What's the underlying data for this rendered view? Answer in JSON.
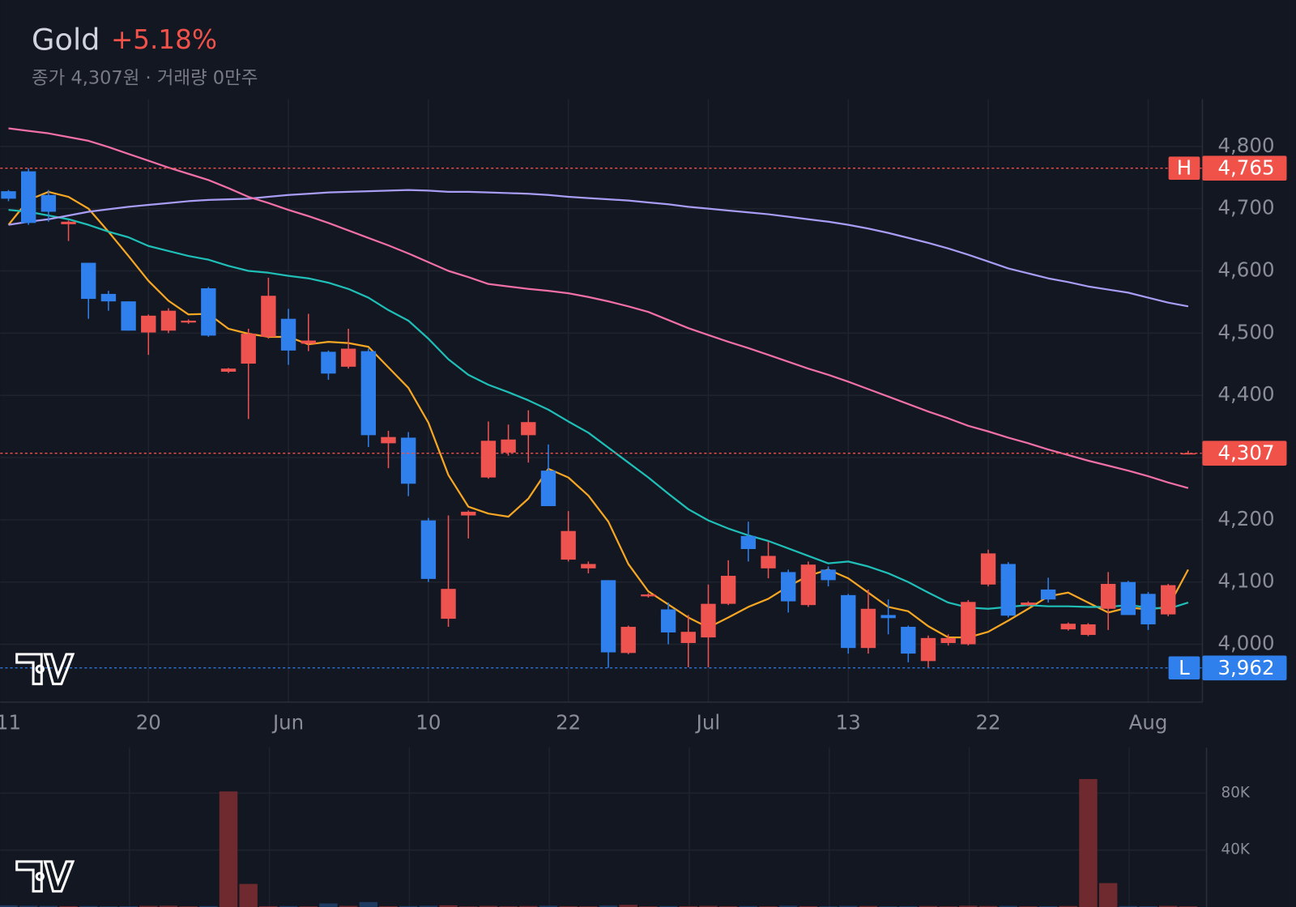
{
  "chart_data": {
    "type": "candlestick",
    "title": "Gold",
    "change": "+5.18%",
    "subtitle": "종가 4,307원 · 거래량 0만주",
    "categories": [
      "11",
      null,
      null,
      null,
      null,
      null,
      null,
      "20",
      null,
      null,
      null,
      null,
      null,
      null,
      "Jun",
      null,
      null,
      null,
      null,
      null,
      null,
      "10",
      null,
      null,
      null,
      null,
      null,
      null,
      "22",
      null,
      null,
      null,
      null,
      null,
      null,
      "Jul",
      null,
      null,
      null,
      null,
      null,
      null,
      "13",
      null,
      null,
      null,
      null,
      null,
      null,
      "22",
      null,
      null,
      null,
      null,
      null,
      null,
      null,
      "Aug",
      null,
      null
    ],
    "open": [
      4728,
      4760,
      4722,
      4675,
      4613,
      4563,
      4551,
      4501,
      4504,
      4517,
      4572,
      4438,
      4451,
      4494,
      4523,
      4483,
      4470,
      4446,
      4471,
      4323,
      4332,
      4199,
      4041,
      4207,
      4268,
      4308,
      4336,
      4279,
      4136,
      4122,
      4103,
      3986,
      4077,
      4056,
      4002,
      4011,
      4065,
      4174,
      4122,
      4116,
      4063,
      4120,
      4079,
      3994,
      4047,
      4028,
      3973,
      4002,
      4000,
      4096,
      4129,
      4063,
      4088,
      4024,
      4015,
      4057,
      4100,
      4081,
      4048,
      4306
    ],
    "high": [
      4730,
      4765,
      4730,
      4681,
      4613,
      4568,
      4551,
      4530,
      4540,
      4522,
      4574,
      4444,
      4507,
      4589,
      4539,
      4531,
      4472,
      4507,
      4475,
      4343,
      4341,
      4203,
      4207,
      4215,
      4358,
      4353,
      4376,
      4321,
      4214,
      4133,
      4103,
      4030,
      4082,
      4067,
      4047,
      4096,
      4135,
      4197,
      4165,
      4120,
      4133,
      4125,
      4081,
      4088,
      4072,
      4030,
      4014,
      4016,
      4071,
      4152,
      4132,
      4069,
      4107,
      4035,
      4034,
      4116,
      4102,
      4084,
      4097,
      4311
    ],
    "low": [
      4712,
      4674,
      4679,
      4648,
      4523,
      4536,
      4504,
      4465,
      4500,
      4515,
      4494,
      4436,
      4362,
      4491,
      4449,
      4471,
      4425,
      4443,
      4317,
      4283,
      4238,
      4100,
      4028,
      4170,
      4266,
      4303,
      4292,
      4222,
      4133,
      4114,
      3962,
      3984,
      4075,
      4000,
      3963,
      3963,
      4063,
      4133,
      4106,
      4051,
      4060,
      4093,
      3985,
      3985,
      4016,
      3971,
      3963,
      3998,
      3998,
      4093,
      4043,
      4061,
      4067,
      4022,
      4013,
      4023,
      4047,
      4023,
      4045,
      4305
    ],
    "close": [
      4716,
      4677,
      4695,
      4679,
      4555,
      4551,
      4504,
      4528,
      4536,
      4520,
      4496,
      4443,
      4499,
      4560,
      4472,
      4488,
      4435,
      4475,
      4336,
      4333,
      4258,
      4105,
      4089,
      4213,
      4327,
      4329,
      4357,
      4222,
      4182,
      4129,
      3987,
      4028,
      4080,
      4019,
      4020,
      4065,
      4110,
      4153,
      4142,
      4069,
      4128,
      4103,
      3994,
      4057,
      4042,
      3985,
      4010,
      4010,
      4068,
      4146,
      4046,
      4067,
      4072,
      4033,
      4032,
      4097,
      4047,
      4032,
      4095,
      4307
    ],
    "up_color": "#ef5350",
    "down_color": "#2f80ed",
    "series": [
      {
        "color": "#f5a623",
        "values": [
          4674,
          4714,
          4727,
          4719,
          4700,
          4663,
          4624,
          4584,
          4552,
          4530,
          4531,
          4507,
          4499,
          4494,
          4494,
          4482,
          4486,
          4484,
          4478,
          4445,
          4412,
          4356,
          4272,
          4221,
          4210,
          4205,
          4234,
          4282,
          4268,
          4239,
          4197,
          4129,
          4085,
          4064,
          4043,
          4027,
          4043,
          4060,
          4073,
          4093,
          4110,
          4120,
          4106,
          4083,
          4060,
          4053,
          4029,
          4011,
          4011,
          4020,
          4038,
          4057,
          4077,
          4083,
          4067,
          4051,
          4059,
          4056,
          4060,
          4120
        ]
      },
      {
        "color": "#1fbfb8",
        "values": [
          4698,
          4695,
          4689,
          4683,
          4674,
          4663,
          4654,
          4640,
          4632,
          4624,
          4618,
          4608,
          4600,
          4597,
          4592,
          4588,
          4581,
          4571,
          4557,
          4537,
          4520,
          4491,
          4458,
          4433,
          4417,
          4405,
          4392,
          4377,
          4358,
          4340,
          4316,
          4292,
          4268,
          4242,
          4217,
          4199,
          4186,
          4175,
          4166,
          4154,
          4142,
          4130,
          4133,
          4125,
          4114,
          4100,
          4083,
          4067,
          4059,
          4057,
          4060,
          4063,
          4061,
          4061,
          4060,
          4060,
          4063,
          4059,
          4057,
          4067
        ]
      },
      {
        "color": "#a99cf4",
        "values": [
          4674,
          4679,
          4683,
          4689,
          4695,
          4699,
          4703,
          4706,
          4709,
          4712,
          4714,
          4715,
          4716,
          4719,
          4722,
          4724,
          4726,
          4727,
          4728,
          4729,
          4730,
          4729,
          4727,
          4727,
          4726,
          4725,
          4724,
          4722,
          4719,
          4717,
          4715,
          4713,
          4710,
          4707,
          4703,
          4700,
          4697,
          4694,
          4691,
          4687,
          4683,
          4679,
          4674,
          4668,
          4661,
          4653,
          4645,
          4636,
          4626,
          4615,
          4604,
          4596,
          4588,
          4582,
          4575,
          4570,
          4565,
          4557,
          4549,
          4543
        ]
      },
      {
        "color": "#f06fa6",
        "values": [
          4829,
          4825,
          4821,
          4815,
          4809,
          4799,
          4788,
          4777,
          4766,
          4756,
          4746,
          4733,
          4719,
          4709,
          4698,
          4688,
          4677,
          4665,
          4653,
          4641,
          4628,
          4614,
          4600,
          4590,
          4579,
          4575,
          4571,
          4568,
          4564,
          4558,
          4551,
          4543,
          4534,
          4521,
          4508,
          4497,
          4486,
          4476,
          4465,
          4454,
          4443,
          4433,
          4422,
          4410,
          4398,
          4386,
          4374,
          4363,
          4351,
          4342,
          4332,
          4323,
          4313,
          4304,
          4295,
          4287,
          4279,
          4270,
          4260,
          4251
        ]
      }
    ],
    "ylim": [
      3907,
      4876
    ],
    "yticks": [
      {
        "value": 4000,
        "label": "4,000"
      },
      {
        "value": 4100,
        "label": "4,100"
      },
      {
        "value": 4200,
        "label": "4,200"
      },
      {
        "value": 4300,
        "label": "4,300"
      },
      {
        "value": 4400,
        "label": "4,400"
      },
      {
        "value": 4500,
        "label": "4,500"
      },
      {
        "value": 4600,
        "label": "4,600"
      },
      {
        "value": 4700,
        "label": "4,700"
      },
      {
        "value": 4800,
        "label": "4,800"
      }
    ],
    "grid": true,
    "high_marker": {
      "label": "H",
      "value": 4765,
      "value_label": "4,765",
      "color": "#f0524a"
    },
    "low_marker": {
      "label": "L",
      "value": 3962,
      "value_label": "3,962",
      "color": "#2f80ed"
    },
    "last_price": {
      "value": 4307,
      "value_label": "4,307",
      "color": "#f0524a"
    },
    "volume": {
      "values": [
        1200,
        900,
        800,
        600,
        700,
        500,
        600,
        800,
        900,
        500,
        700,
        81200,
        16200,
        600,
        700,
        500,
        2500,
        800,
        3500,
        600,
        700,
        900,
        1200,
        500,
        800,
        600,
        700,
        900,
        600,
        500,
        1000,
        1500,
        500,
        700,
        600,
        800,
        600,
        700,
        500,
        900,
        600,
        500,
        800,
        700,
        500,
        600,
        700,
        500,
        900,
        700,
        800,
        500,
        600,
        700,
        89900,
        16800,
        700,
        600,
        800,
        500
      ],
      "up_color": "#6e2a2e",
      "down_color": "#1e3a60",
      "ylim": [
        0,
        112000
      ],
      "yticks": [
        {
          "value": 40000,
          "label": "40K"
        },
        {
          "value": 80000,
          "label": "80K"
        }
      ]
    }
  }
}
